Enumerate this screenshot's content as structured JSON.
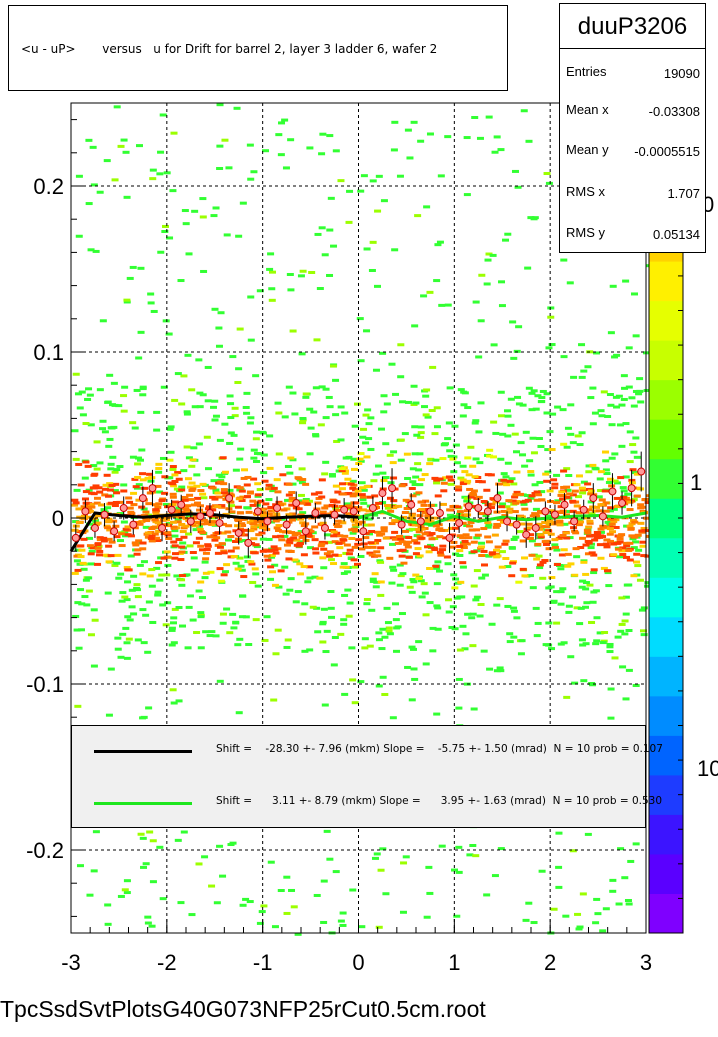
{
  "canvas_title": "<u - uP>       versus   u for Drift for barrel 2, layer 3 ladder 6, wafer 2",
  "stats": {
    "name": "duuP3206",
    "rows": [
      {
        "label": "Entries",
        "value": "19090"
      },
      {
        "label": "Mean x",
        "value": "-0.03308"
      },
      {
        "label": "Mean y",
        "value": "-0.0005515"
      },
      {
        "label": "RMS x",
        "value": "1.707"
      },
      {
        "label": "RMS y",
        "value": "0.05134"
      }
    ]
  },
  "legend": [
    {
      "text": "Shift =    -28.30 +- 7.96 (mkm) Slope =    -5.75 +- 1.50 (mrad)  N = 10 prob = 0.107",
      "color": "#000000"
    },
    {
      "text": "Shift =      3.11 +- 8.79 (mkm) Slope =      3.95 +- 1.63 (mrad)  N = 10 prob = 0.530",
      "color": "#1ee61e"
    }
  ],
  "file_label": "TpcSsdSvtPlotsG40G073NFP25rCut0.5cm.root",
  "colors": {
    "palette": [
      "#7f00ff",
      "#5a00ff",
      "#3c14ff",
      "#1e3cff",
      "#0064ff",
      "#008cff",
      "#00b4ff",
      "#00dcff",
      "#00ffe6",
      "#00ffb4",
      "#00ff78",
      "#32ff32",
      "#64ff00",
      "#9bff00",
      "#c8ff00",
      "#e6ff00",
      "#fff000",
      "#ffd200",
      "#ffaa00",
      "#ff7800",
      "#ff3c00"
    ],
    "black_fit": "#000000",
    "green_fit": "#1ee61e",
    "marker_fill": "#ff9999",
    "marker_edge": "#cc0000"
  },
  "chart_data": {
    "type": "heatmap",
    "xlim": [
      -3,
      3
    ],
    "ylim": [
      -0.25,
      0.25
    ],
    "x_ticks": [
      "-3",
      "-2",
      "-1",
      "0",
      "1",
      "2",
      "3"
    ],
    "y_ticks": [
      "0.2",
      "0.1",
      "0",
      "-0.1",
      "-0.2"
    ],
    "z_labels": [
      "0",
      "1",
      "10"
    ],
    "z_scale": "log",
    "grid": true,
    "density_core": {
      "y_center": 0.0,
      "half_width": 0.03
    },
    "profile": {
      "x": [
        -2.95,
        -2.85,
        -2.75,
        -2.65,
        -2.55,
        -2.45,
        -2.35,
        -2.25,
        -2.15,
        -2.05,
        -1.95,
        -1.85,
        -1.75,
        -1.65,
        -1.55,
        -1.45,
        -1.35,
        -1.25,
        -1.15,
        -1.05,
        -0.95,
        -0.85,
        -0.75,
        -0.65,
        -0.55,
        -0.45,
        -0.35,
        -0.25,
        -0.15,
        -0.05,
        0.05,
        0.15,
        0.25,
        0.35,
        0.45,
        0.55,
        0.65,
        0.75,
        0.85,
        0.95,
        1.05,
        1.15,
        1.25,
        1.35,
        1.45,
        1.55,
        1.65,
        1.75,
        1.85,
        1.95,
        2.05,
        2.15,
        2.25,
        2.35,
        2.45,
        2.55,
        2.65,
        2.75,
        2.85,
        2.95
      ],
      "y": [
        -0.012,
        0.004,
        -0.006,
        0.002,
        -0.008,
        0.006,
        -0.004,
        0.012,
        0.018,
        -0.006,
        0.005,
        0.008,
        -0.002,
        0.001,
        0.003,
        -0.003,
        0.012,
        -0.009,
        -0.015,
        0.004,
        -0.002,
        0.006,
        -0.004,
        0.009,
        -0.008,
        0.003,
        -0.006,
        0.002,
        0.005,
        0.004,
        -0.008,
        0.006,
        0.015,
        0.018,
        -0.004,
        0.008,
        -0.002,
        0.004,
        0.003,
        -0.012,
        -0.003,
        0.007,
        0.006,
        0.004,
        0.012,
        -0.002,
        -0.004,
        -0.01,
        -0.006,
        0.004,
        0.002,
        0.008,
        -0.002,
        0.005,
        0.012,
        0.001,
        0.016,
        0.009,
        0.018,
        0.028
      ],
      "err": [
        0.008,
        0.007,
        0.006,
        0.007,
        0.006,
        0.007,
        0.006,
        0.007,
        0.011,
        0.008,
        0.006,
        0.006,
        0.007,
        0.006,
        0.006,
        0.007,
        0.009,
        0.007,
        0.009,
        0.006,
        0.006,
        0.007,
        0.006,
        0.007,
        0.008,
        0.006,
        0.007,
        0.006,
        0.007,
        0.006,
        0.01,
        0.007,
        0.01,
        0.012,
        0.006,
        0.007,
        0.006,
        0.006,
        0.007,
        0.009,
        0.006,
        0.007,
        0.006,
        0.006,
        0.009,
        0.006,
        0.006,
        0.008,
        0.007,
        0.006,
        0.006,
        0.007,
        0.006,
        0.006,
        0.009,
        0.006,
        0.011,
        0.007,
        0.011,
        0.012
      ]
    },
    "fits": [
      {
        "x_range": [
          -3,
          0
        ],
        "y_samples": [
          -0.02,
          0.003,
          0.0015,
          0.0005,
          0.0015,
          0.0025,
          0.002,
          0.0005,
          -0.0005,
          0.0005,
          0.001,
          0.0015,
          0.0005
        ]
      },
      {
        "x_range": [
          0,
          3
        ],
        "y_samples": [
          0.0,
          0.004,
          -0.002,
          -0.004,
          0.001,
          -0.002,
          0.0005,
          -0.001,
          0.0,
          0.001,
          0.0015,
          0.0005,
          0.003
        ]
      }
    ]
  }
}
